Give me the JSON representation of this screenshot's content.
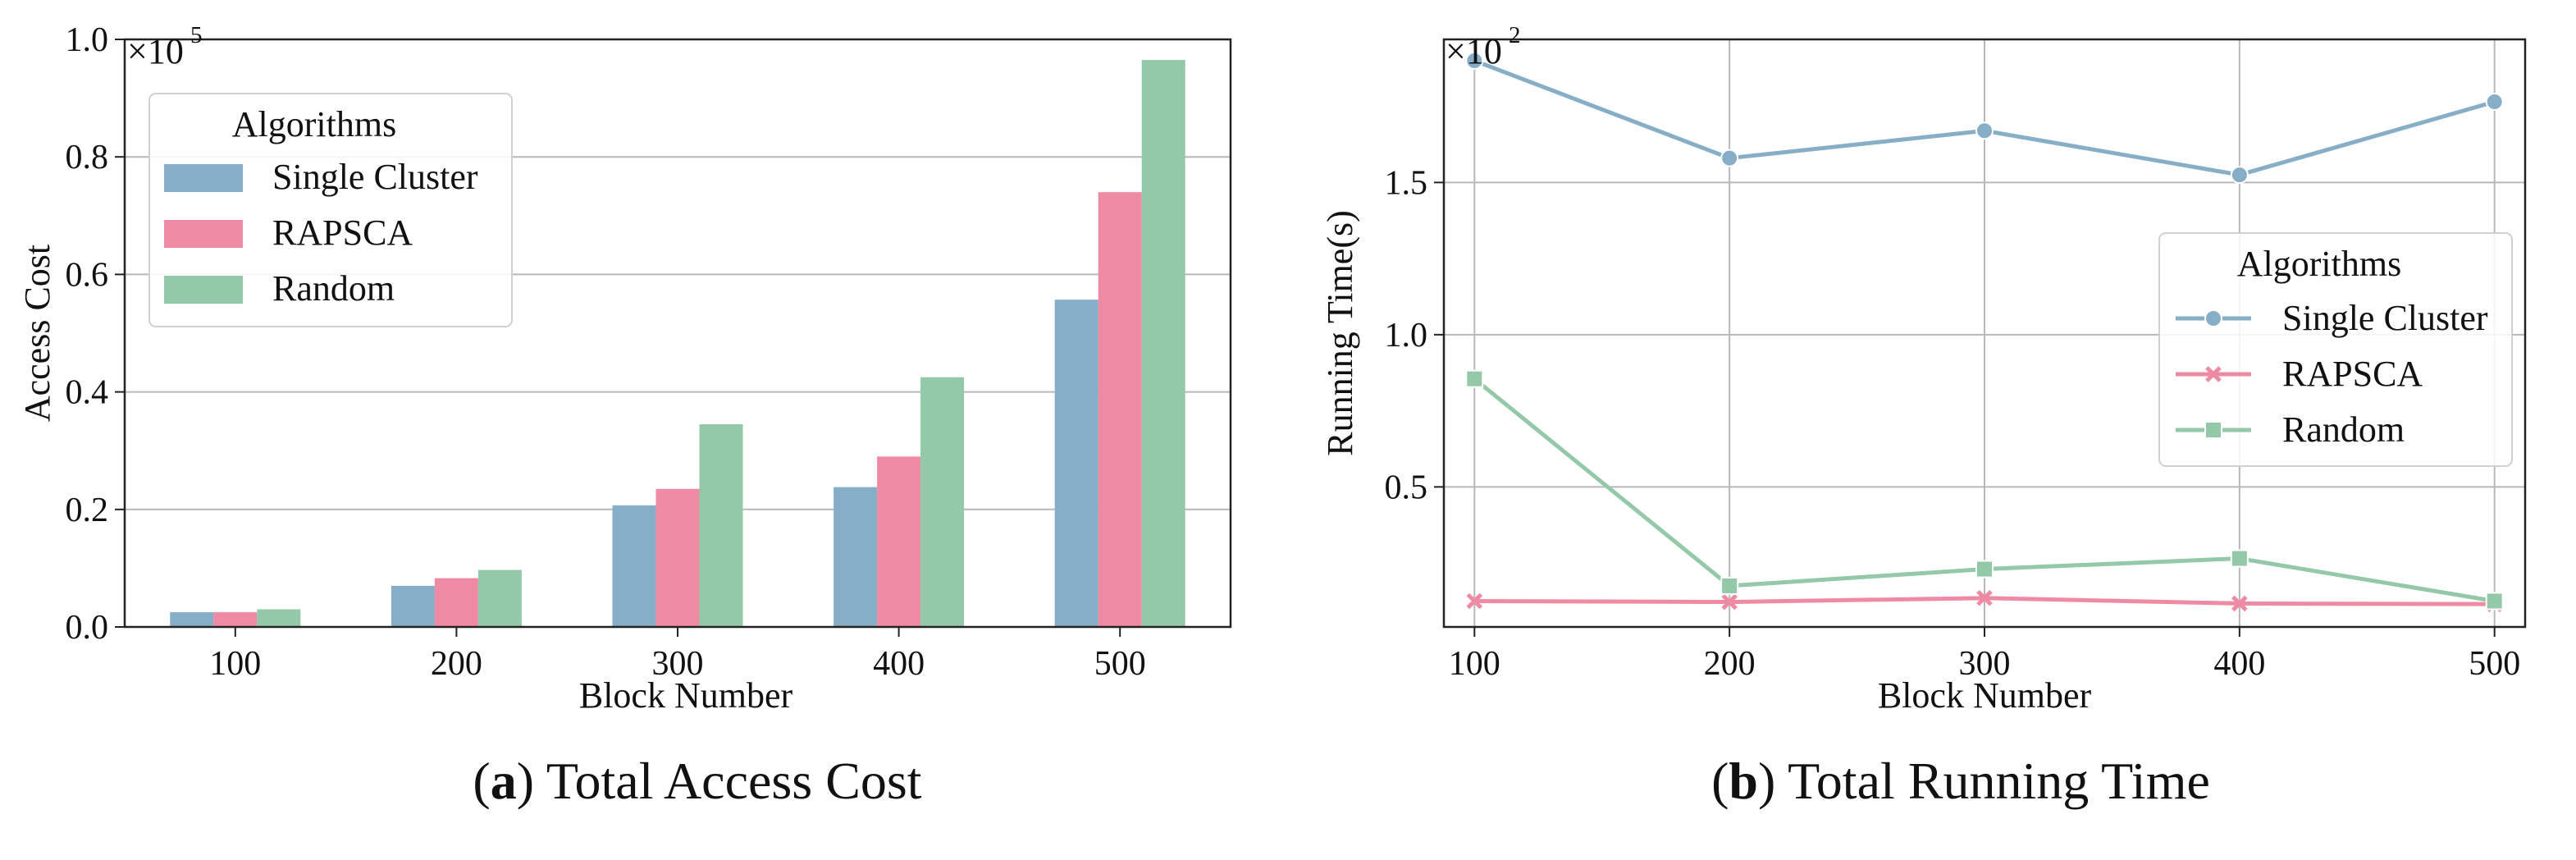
{
  "chart_data": [
    {
      "type": "bar",
      "title": "",
      "xlabel": "Block Number",
      "ylabel": "Access Cost",
      "offset_text": "×10",
      "offset_exp": "5",
      "categories": [
        "100",
        "200",
        "300",
        "400",
        "500"
      ],
      "yticks": [
        "0.0",
        "0.2",
        "0.4",
        "0.6",
        "0.8",
        "1.0"
      ],
      "ylim": [
        0,
        1.0
      ],
      "legend_title": "Algorithms",
      "legend_loc": "upper-left",
      "series": [
        {
          "name": "Single Cluster",
          "color": "#86aec7",
          "values": [
            0.025,
            0.07,
            0.207,
            0.238,
            0.557
          ]
        },
        {
          "name": "RAPSCA",
          "color": "#ef8aa4",
          "values": [
            0.025,
            0.083,
            0.235,
            0.29,
            0.74
          ]
        },
        {
          "name": "Random",
          "color": "#93c8a8",
          "values": [
            0.03,
            0.097,
            0.345,
            0.425,
            0.965
          ]
        }
      ]
    },
    {
      "type": "line",
      "title": "",
      "xlabel": "Block Number",
      "ylabel": "Running Time(s)",
      "offset_text": "×10",
      "offset_exp": "2",
      "x": [
        100,
        200,
        300,
        400,
        500
      ],
      "xticks": [
        "100",
        "200",
        "300",
        "400",
        "500"
      ],
      "yticks": [
        "0.5",
        "1.0",
        "1.5"
      ],
      "ytick_values": [
        0.5,
        1.0,
        1.5
      ],
      "ylim": [
        0.04,
        1.97
      ],
      "legend_title": "Algorithms",
      "legend_loc": "center-right",
      "series": [
        {
          "name": "Single Cluster",
          "color": "#86aec7",
          "marker": "circle",
          "values": [
            1.9,
            1.58,
            1.67,
            1.525,
            1.765
          ]
        },
        {
          "name": "RAPSCA",
          "color": "#ef8aa4",
          "marker": "x",
          "values": [
            0.125,
            0.122,
            0.135,
            0.117,
            0.115
          ]
        },
        {
          "name": "Random",
          "color": "#93c8a8",
          "marker": "square",
          "values": [
            0.855,
            0.175,
            0.23,
            0.265,
            0.125
          ]
        }
      ]
    }
  ],
  "captions": {
    "a_label": "a",
    "a_text": "Total Access Cost",
    "b_label": "b",
    "b_text": "Total Running Time"
  }
}
